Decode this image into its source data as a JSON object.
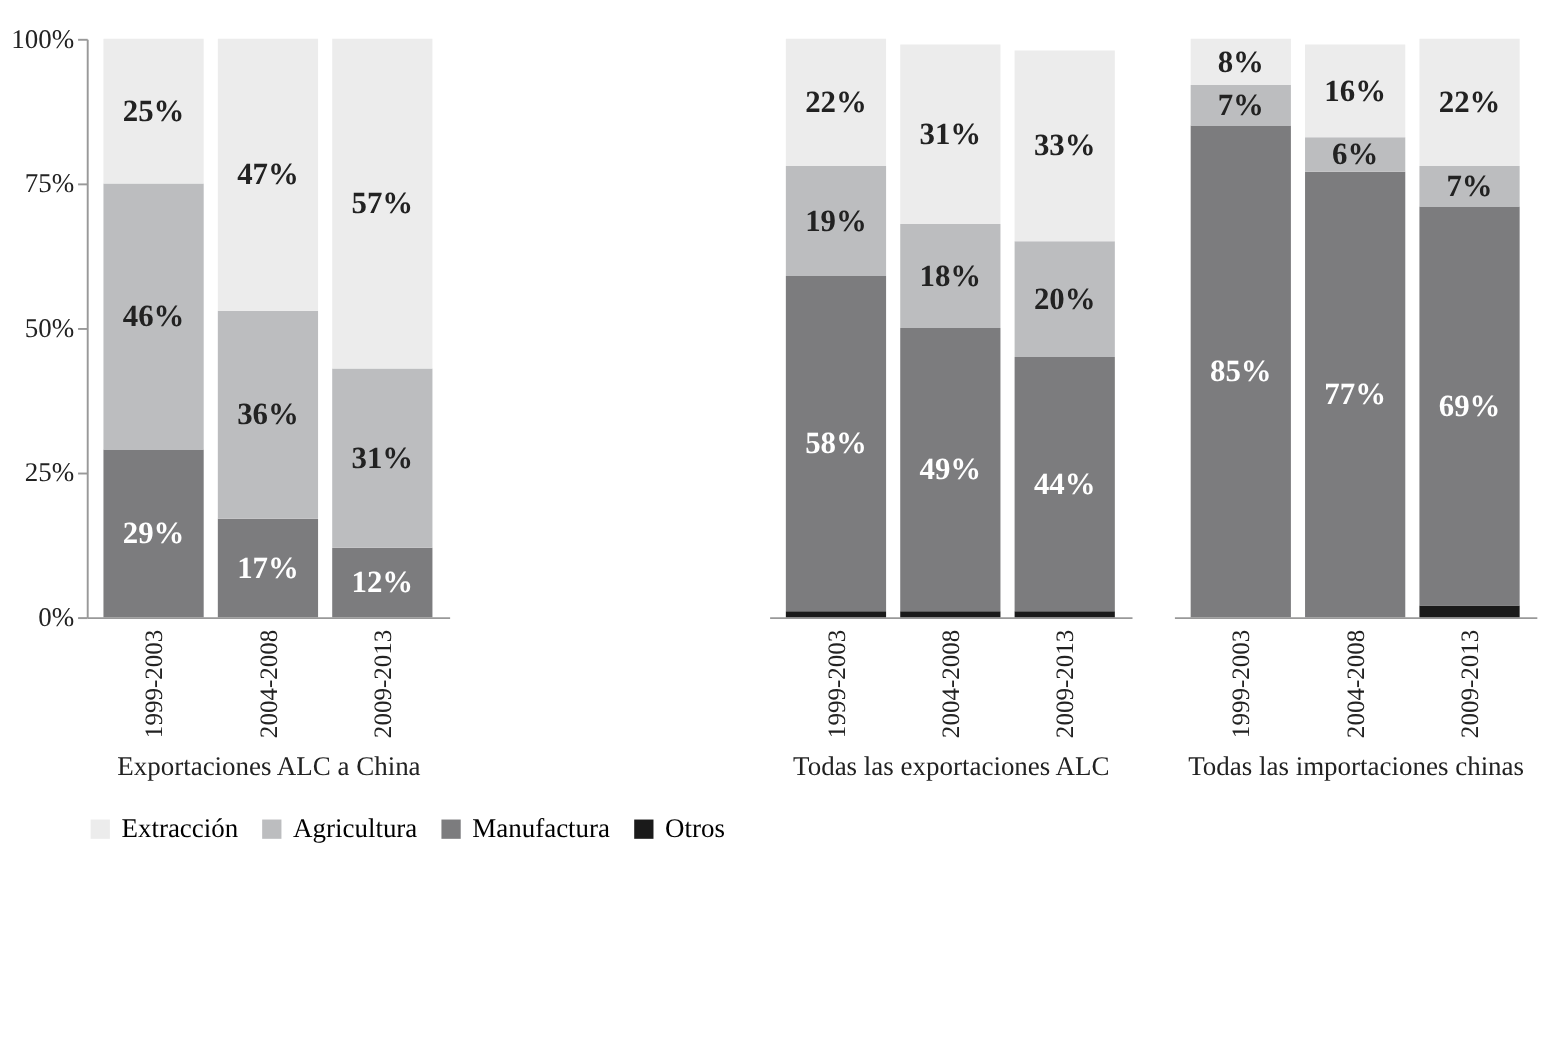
{
  "chart_data": [
    {
      "type": "bar",
      "stacked": true,
      "categories": [
        "1999-2003",
        "2004-2008",
        "2009-2013"
      ],
      "xlabel": "Exportaciones ALC a China",
      "ylim": [
        0,
        100
      ],
      "yticks": [
        {
          "value": 0,
          "label": "0%"
        },
        {
          "value": 25,
          "label": "25%"
        },
        {
          "value": 50,
          "label": "50%"
        },
        {
          "value": 75,
          "label": "75%"
        },
        {
          "value": 100,
          "label": "100%"
        }
      ],
      "legend": "bottom",
      "series": [
        {
          "name": "Otros",
          "color": "#1a1a1a",
          "values": [
            0,
            0,
            0
          ],
          "value_labels": [
            null,
            null,
            null
          ]
        },
        {
          "name": "Manufactura",
          "color": "#7c7c7e",
          "values": [
            29,
            17,
            12
          ],
          "value_labels": [
            "29%",
            "17%",
            "12%"
          ]
        },
        {
          "name": "Agricultura",
          "color": "#bcbdbf",
          "values": [
            46,
            36,
            31
          ],
          "value_labels": [
            "46%",
            "36%",
            "31%"
          ]
        },
        {
          "name": "Extracción",
          "color": "#ececec",
          "values": [
            25,
            47,
            57
          ],
          "value_labels": [
            "25%",
            "47%",
            "57%"
          ]
        }
      ]
    },
    {
      "type": "bar",
      "stacked": true,
      "categories": [
        "1999-2003",
        "2004-2008",
        "2009-2013"
      ],
      "xlabel": "Todas las exportaciones ALC",
      "ylim": [
        0,
        100
      ],
      "tick_labels": "x",
      "series": [
        {
          "color": "#1a1a1a",
          "values": [
            1,
            1,
            1
          ],
          "value_labels": [
            null,
            null,
            null
          ]
        },
        {
          "color": "#7c7c7e",
          "values": [
            58,
            49,
            44
          ],
          "value_labels": [
            "58%",
            "49%",
            "44%"
          ]
        },
        {
          "color": "#bcbdbf",
          "values": [
            19,
            18,
            20
          ],
          "value_labels": [
            "19%",
            "18%",
            "20%"
          ]
        },
        {
          "color": "#ececec",
          "values": [
            22,
            31,
            33
          ],
          "value_labels": [
            "22%",
            "31%",
            "33%"
          ]
        }
      ]
    },
    {
      "type": "bar",
      "stacked": true,
      "categories": [
        "1999-2003",
        "2004-2008",
        "2009-2013"
      ],
      "xlabel": "Todas las importaciones chinas",
      "ylim": [
        0,
        100
      ],
      "tick_labels": "x",
      "series": [
        {
          "color": "#1a1a1a",
          "values": [
            0,
            0,
            2
          ],
          "value_labels": [
            null,
            null,
            null
          ]
        },
        {
          "color": "#7c7c7e",
          "values": [
            85,
            77,
            69
          ],
          "value_labels": [
            "85%",
            "77%",
            "69%"
          ]
        },
        {
          "color": "#bcbdbf",
          "values": [
            7,
            6,
            7
          ],
          "value_labels": [
            "7%",
            "6%",
            "7%"
          ]
        },
        {
          "color": "#ececec",
          "values": [
            8,
            16,
            22
          ],
          "value_labels": [
            "8%",
            "16%",
            "22%"
          ]
        }
      ]
    }
  ]
}
